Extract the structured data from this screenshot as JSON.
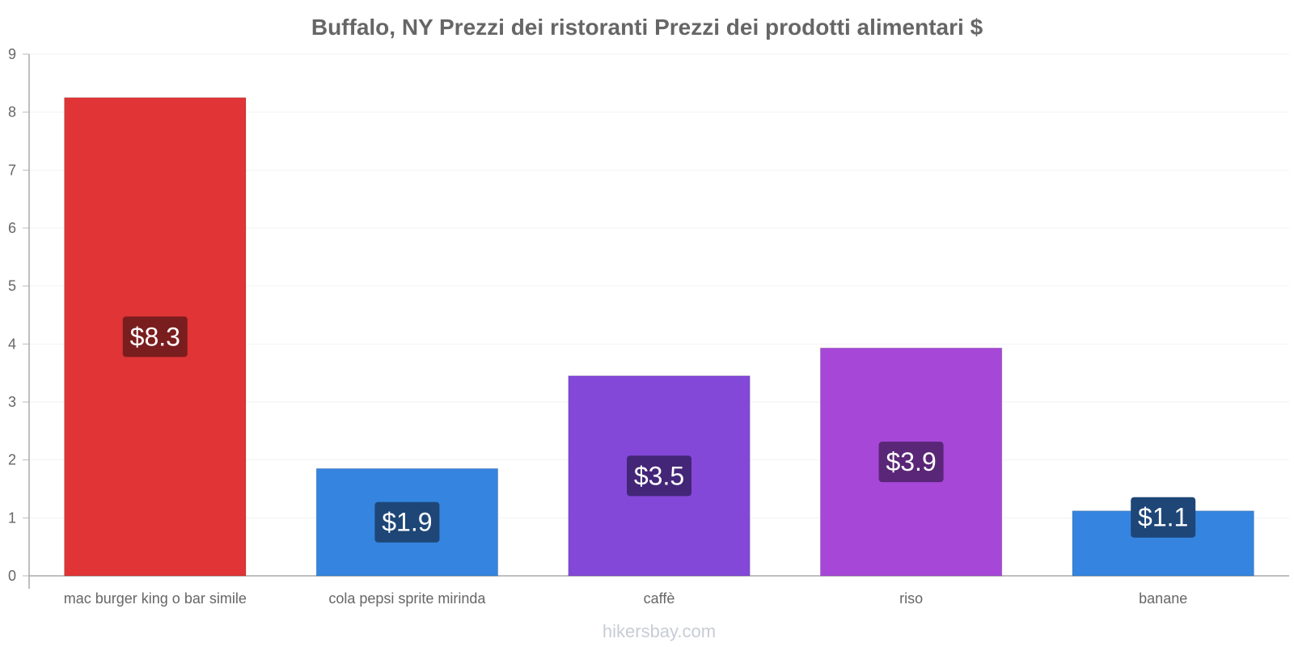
{
  "chart_data": {
    "type": "bar",
    "title": "Buffalo, NY Prezzi dei ristoranti Prezzi dei prodotti alimentari $",
    "xlabel": "",
    "ylabel": "",
    "ylim": [
      0,
      9
    ],
    "yticks": [
      0,
      1,
      2,
      3,
      4,
      5,
      6,
      7,
      8,
      9
    ],
    "grid": true,
    "categories": [
      "mac burger king o bar simile",
      "cola pepsi sprite mirinda",
      "caffè",
      "riso",
      "banane"
    ],
    "values": [
      8.25,
      1.85,
      3.45,
      3.93,
      1.12
    ],
    "data_labels": [
      "$8.3",
      "$1.9",
      "$3.5",
      "$3.9",
      "$1.1"
    ],
    "bar_colors": [
      "#e03436",
      "#3584e0",
      "#8348d8",
      "#a647d8",
      "#3584e0"
    ],
    "label_box_colors": [
      "#7a1d1e",
      "#1e4677",
      "#442678",
      "#5a2677",
      "#1e4677"
    ]
  },
  "watermark": "hikersbay.com"
}
